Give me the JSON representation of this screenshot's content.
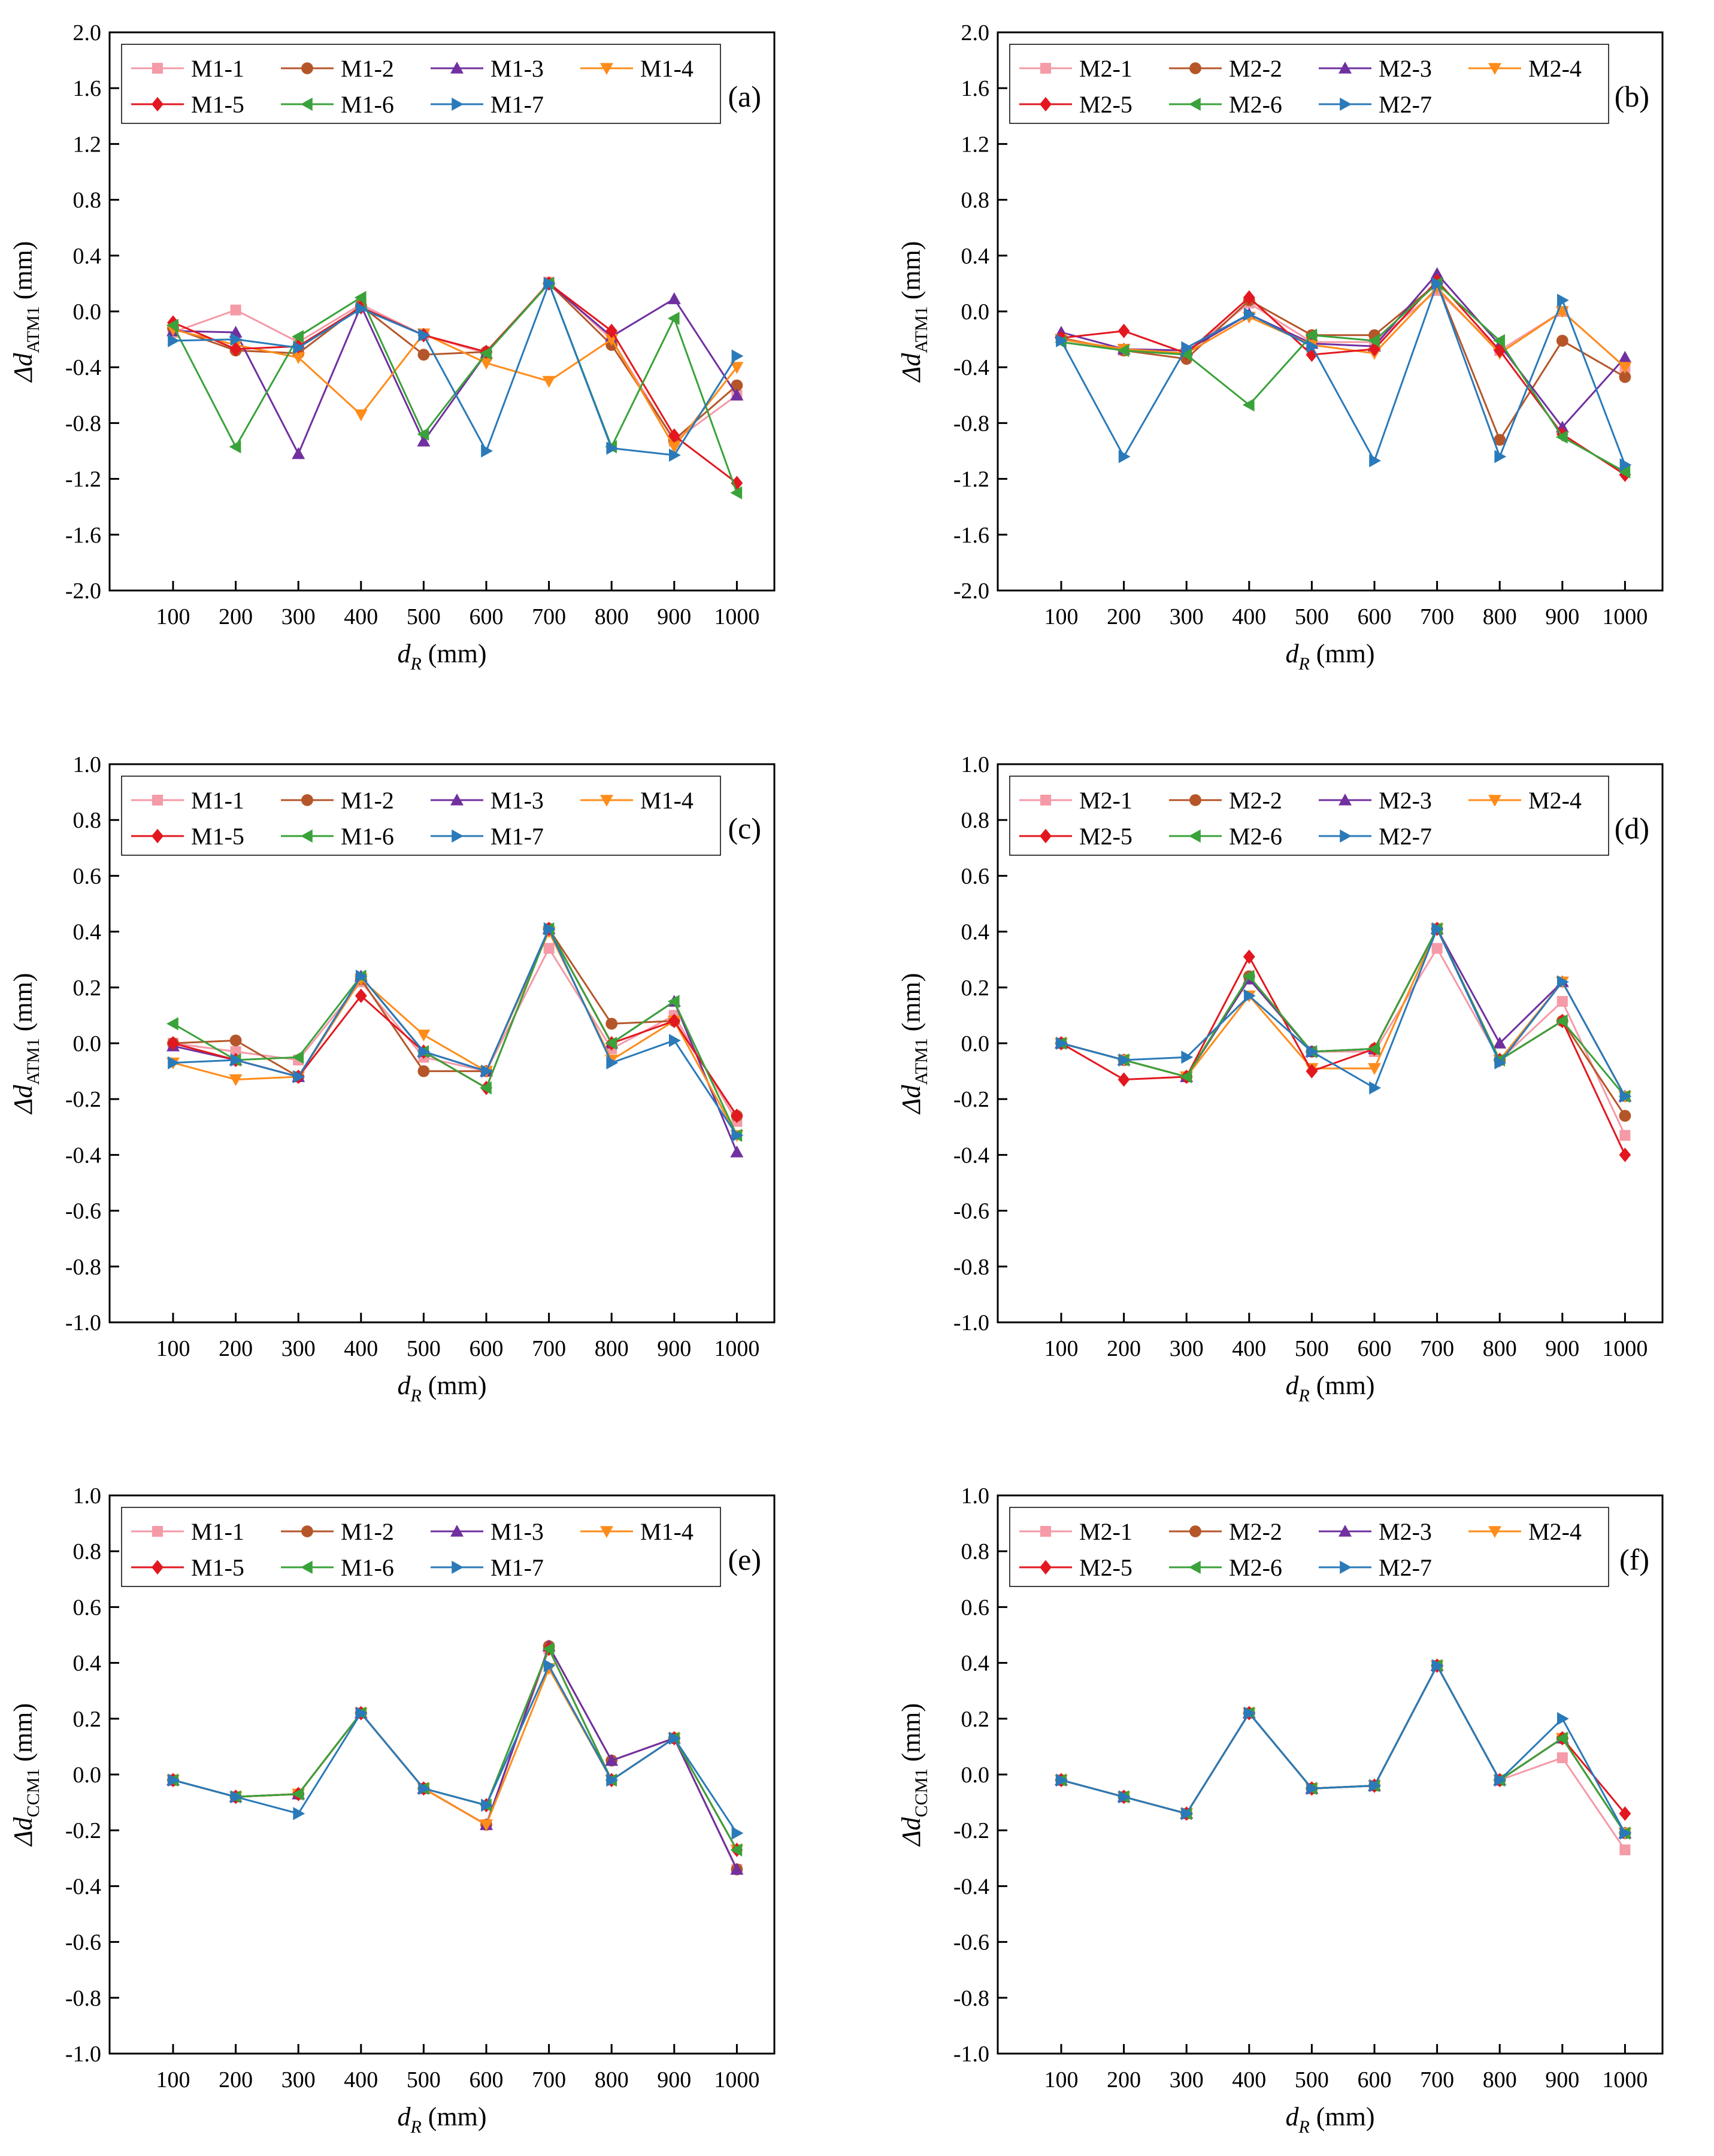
{
  "colors": {
    "M-1": "#f59aa7",
    "M-2": "#b5562a",
    "M-3": "#7030a0",
    "M-4": "#ff8c1a",
    "M-5": "#e3171f",
    "M-6": "#3aa23a",
    "M-7": "#2a7ab9"
  },
  "markers": {
    "M-1": "square",
    "M-2": "circle",
    "M-3": "triangle-up",
    "M-4": "triangle-down",
    "M-5": "diamond",
    "M-6": "triangle-left",
    "M-7": "triangle-right"
  },
  "chart_data": [
    {
      "type": "line",
      "panel": "(a)",
      "xlabel": "d",
      "xlabel_sub": "R",
      "xlabel_unit": " (mm)",
      "ylabel": "Δd",
      "ylabel_sub": "ATM1",
      "ylabel_unit": " (mm)",
      "ylim": [
        -2.0,
        2.0
      ],
      "yticks": [
        "-2.0",
        "-1.6",
        "-1.2",
        "-0.8",
        "-0.4",
        "0.0",
        "0.4",
        "0.8",
        "1.2",
        "1.6",
        "2.0"
      ],
      "categories": [
        "100",
        "200",
        "300",
        "400",
        "500",
        "600",
        "700",
        "800",
        "900",
        "1000"
      ],
      "series": [
        {
          "name": "M1-1",
          "key": "M-1",
          "values": [
            -0.15,
            0.01,
            -0.22,
            0.05,
            -0.17,
            -0.3,
            0.21,
            -0.2,
            -0.93,
            -0.6
          ]
        },
        {
          "name": "M1-2",
          "key": "M-2",
          "values": [
            -0.12,
            -0.28,
            -0.3,
            0.04,
            -0.31,
            -0.29,
            0.2,
            -0.24,
            -0.92,
            -0.53
          ]
        },
        {
          "name": "M1-3",
          "key": "M-3",
          "values": [
            -0.14,
            -0.15,
            -1.02,
            0.04,
            -0.93,
            -0.3,
            0.2,
            -0.18,
            0.09,
            -0.6
          ]
        },
        {
          "name": "M1-4",
          "key": "M-4",
          "values": [
            -0.13,
            -0.24,
            -0.33,
            -0.74,
            -0.16,
            -0.37,
            -0.5,
            -0.2,
            -0.97,
            -0.4
          ]
        },
        {
          "name": "M1-5",
          "key": "M-5",
          "values": [
            -0.08,
            -0.27,
            -0.25,
            0.03,
            -0.17,
            -0.29,
            0.2,
            -0.14,
            -0.89,
            -1.23
          ]
        },
        {
          "name": "M1-6",
          "key": "M-6",
          "values": [
            -0.1,
            -0.97,
            -0.18,
            0.1,
            -0.88,
            -0.3,
            0.2,
            -0.97,
            -0.05,
            -1.3
          ]
        },
        {
          "name": "M1-7",
          "key": "M-7",
          "values": [
            -0.21,
            -0.2,
            -0.26,
            0.02,
            -0.17,
            -1.0,
            0.2,
            -0.98,
            -1.03,
            -0.32
          ]
        }
      ]
    },
    {
      "type": "line",
      "panel": "(b)",
      "xlabel": "d",
      "xlabel_sub": "R",
      "xlabel_unit": " (mm)",
      "ylabel": "Δd",
      "ylabel_sub": "ATM1",
      "ylabel_unit": " (mm)",
      "ylim": [
        -2.0,
        2.0
      ],
      "yticks": [
        "-2.0",
        "-1.6",
        "-1.2",
        "-0.8",
        "-0.4",
        "0.0",
        "0.4",
        "0.8",
        "1.2",
        "1.6",
        "2.0"
      ],
      "categories": [
        "100",
        "200",
        "300",
        "400",
        "500",
        "600",
        "700",
        "800",
        "900",
        "1000"
      ],
      "series": [
        {
          "name": "M2-1",
          "key": "M-1",
          "values": [
            -0.2,
            -0.28,
            -0.3,
            0.06,
            -0.22,
            -0.22,
            0.15,
            -0.28,
            0.0,
            -0.4
          ]
        },
        {
          "name": "M2-2",
          "key": "M-2",
          "values": [
            -0.19,
            -0.28,
            -0.34,
            0.08,
            -0.17,
            -0.17,
            0.2,
            -0.92,
            -0.21,
            -0.47
          ]
        },
        {
          "name": "M2-3",
          "key": "M-3",
          "values": [
            -0.15,
            -0.27,
            -0.28,
            -0.02,
            -0.23,
            -0.25,
            0.27,
            -0.24,
            -0.83,
            -0.33
          ]
        },
        {
          "name": "M2-4",
          "key": "M-4",
          "values": [
            -0.2,
            -0.27,
            -0.3,
            -0.04,
            -0.24,
            -0.3,
            0.17,
            -0.3,
            0.0,
            -0.4
          ]
        },
        {
          "name": "M2-5",
          "key": "M-5",
          "values": [
            -0.19,
            -0.14,
            -0.3,
            0.1,
            -0.31,
            -0.27,
            0.22,
            -0.28,
            -0.88,
            -1.17
          ]
        },
        {
          "name": "M2-6",
          "key": "M-6",
          "values": [
            -0.22,
            -0.28,
            -0.31,
            -0.67,
            -0.17,
            -0.21,
            0.2,
            -0.21,
            -0.9,
            -1.15
          ]
        },
        {
          "name": "M2-7",
          "key": "M-7",
          "values": [
            -0.21,
            -1.04,
            -0.26,
            -0.02,
            -0.25,
            -1.07,
            0.2,
            -1.04,
            0.08,
            -1.1
          ]
        }
      ]
    },
    {
      "type": "line",
      "panel": "(c)",
      "xlabel": "d",
      "xlabel_sub": "R",
      "xlabel_unit": " (mm)",
      "ylabel": "Δd",
      "ylabel_sub": "ATM1",
      "ylabel_unit": " (mm)",
      "ylim": [
        -1.0,
        1.0
      ],
      "yticks": [
        "-1.0",
        "-0.8",
        "-0.6",
        "-0.4",
        "-0.2",
        "0.0",
        "0.2",
        "0.4",
        "0.6",
        "0.8",
        "1.0"
      ],
      "categories": [
        "100",
        "200",
        "300",
        "400",
        "500",
        "600",
        "700",
        "800",
        "900",
        "1000"
      ],
      "series": [
        {
          "name": "M1-1",
          "key": "M-1",
          "values": [
            0.0,
            -0.03,
            -0.06,
            0.22,
            -0.05,
            -0.1,
            0.34,
            -0.02,
            0.1,
            -0.28
          ]
        },
        {
          "name": "M1-2",
          "key": "M-2",
          "values": [
            0.0,
            0.01,
            -0.12,
            0.23,
            -0.1,
            -0.1,
            0.41,
            0.07,
            0.08,
            -0.26
          ]
        },
        {
          "name": "M1-3",
          "key": "M-3",
          "values": [
            -0.01,
            -0.06,
            -0.12,
            0.24,
            -0.03,
            -0.1,
            0.41,
            0.0,
            0.15,
            -0.39
          ]
        },
        {
          "name": "M1-4",
          "key": "M-4",
          "values": [
            -0.07,
            -0.13,
            -0.12,
            0.23,
            0.03,
            -0.1,
            0.4,
            -0.06,
            0.08,
            -0.33
          ]
        },
        {
          "name": "M1-5",
          "key": "M-5",
          "values": [
            0.0,
            -0.06,
            -0.12,
            0.17,
            -0.03,
            -0.16,
            0.41,
            0.0,
            0.08,
            -0.26
          ]
        },
        {
          "name": "M1-6",
          "key": "M-6",
          "values": [
            0.07,
            -0.06,
            -0.05,
            0.24,
            -0.03,
            -0.16,
            0.41,
            0.0,
            0.15,
            -0.33
          ]
        },
        {
          "name": "M1-7",
          "key": "M-7",
          "values": [
            -0.07,
            -0.06,
            -0.12,
            0.24,
            -0.03,
            -0.1,
            0.41,
            -0.07,
            0.01,
            -0.33
          ]
        }
      ]
    },
    {
      "type": "line",
      "panel": "(d)",
      "xlabel": "d",
      "xlabel_sub": "R",
      "xlabel_unit": " (mm)",
      "ylabel": "Δd",
      "ylabel_sub": "ATM1",
      "ylabel_unit": " (mm)",
      "ylim": [
        -1.0,
        1.0
      ],
      "yticks": [
        "-1.0",
        "-0.8",
        "-0.6",
        "-0.4",
        "-0.2",
        "0.0",
        "0.2",
        "0.4",
        "0.6",
        "0.8",
        "1.0"
      ],
      "categories": [
        "100",
        "200",
        "300",
        "400",
        "500",
        "600",
        "700",
        "800",
        "900",
        "1000"
      ],
      "series": [
        {
          "name": "M2-1",
          "key": "M-1",
          "values": [
            0.0,
            -0.06,
            -0.12,
            0.23,
            -0.03,
            -0.03,
            0.34,
            -0.06,
            0.15,
            -0.33
          ]
        },
        {
          "name": "M2-2",
          "key": "M-2",
          "values": [
            0.0,
            -0.06,
            -0.12,
            0.24,
            -0.03,
            -0.02,
            0.41,
            -0.06,
            0.08,
            -0.26
          ]
        },
        {
          "name": "M2-3",
          "key": "M-3",
          "values": [
            0.0,
            -0.06,
            -0.12,
            0.23,
            -0.03,
            -0.02,
            0.41,
            0.0,
            0.22,
            -0.19
          ]
        },
        {
          "name": "M2-4",
          "key": "M-4",
          "values": [
            0.0,
            -0.06,
            -0.12,
            0.17,
            -0.09,
            -0.09,
            0.41,
            -0.06,
            0.22,
            -0.19
          ]
        },
        {
          "name": "M2-5",
          "key": "M-5",
          "values": [
            0.0,
            -0.13,
            -0.12,
            0.31,
            -0.1,
            -0.02,
            0.41,
            -0.06,
            0.08,
            -0.4
          ]
        },
        {
          "name": "M2-6",
          "key": "M-6",
          "values": [
            0.0,
            -0.06,
            -0.12,
            0.24,
            -0.03,
            -0.02,
            0.41,
            -0.06,
            0.08,
            -0.19
          ]
        },
        {
          "name": "M2-7",
          "key": "M-7",
          "values": [
            0.0,
            -0.06,
            -0.05,
            0.17,
            -0.03,
            -0.16,
            0.41,
            -0.07,
            0.22,
            -0.19
          ]
        }
      ]
    },
    {
      "type": "line",
      "panel": "(e)",
      "xlabel": "d",
      "xlabel_sub": "R",
      "xlabel_unit": " (mm)",
      "ylabel": "Δd",
      "ylabel_sub": "CCM1",
      "ylabel_unit": " (mm)",
      "ylim": [
        -1.0,
        1.0
      ],
      "yticks": [
        "-1.0",
        "-0.8",
        "-0.6",
        "-0.4",
        "-0.2",
        "0.0",
        "0.2",
        "0.4",
        "0.6",
        "0.8",
        "1.0"
      ],
      "categories": [
        "100",
        "200",
        "300",
        "400",
        "500",
        "600",
        "700",
        "800",
        "900",
        "1000"
      ],
      "series": [
        {
          "name": "M1-1",
          "key": "M-1",
          "values": [
            -0.02,
            -0.08,
            -0.07,
            0.22,
            -0.05,
            -0.18,
            0.45,
            -0.02,
            0.13,
            -0.34
          ]
        },
        {
          "name": "M1-2",
          "key": "M-2",
          "values": [
            -0.02,
            -0.08,
            -0.07,
            0.22,
            -0.05,
            -0.18,
            0.46,
            0.05,
            0.13,
            -0.34
          ]
        },
        {
          "name": "M1-3",
          "key": "M-3",
          "values": [
            -0.02,
            -0.08,
            -0.07,
            0.22,
            -0.05,
            -0.18,
            0.46,
            0.05,
            0.13,
            -0.34
          ]
        },
        {
          "name": "M1-4",
          "key": "M-4",
          "values": [
            -0.02,
            -0.08,
            -0.07,
            0.22,
            -0.05,
            -0.18,
            0.38,
            -0.02,
            0.13,
            -0.27
          ]
        },
        {
          "name": "M1-5",
          "key": "M-5",
          "values": [
            -0.02,
            -0.08,
            -0.07,
            0.22,
            -0.05,
            -0.11,
            0.45,
            -0.02,
            0.13,
            -0.27
          ]
        },
        {
          "name": "M1-6",
          "key": "M-6",
          "values": [
            -0.02,
            -0.08,
            -0.07,
            0.22,
            -0.05,
            -0.11,
            0.45,
            -0.02,
            0.13,
            -0.27
          ]
        },
        {
          "name": "M1-7",
          "key": "M-7",
          "values": [
            -0.02,
            -0.08,
            -0.14,
            0.22,
            -0.05,
            -0.11,
            0.39,
            -0.02,
            0.13,
            -0.21
          ]
        }
      ]
    },
    {
      "type": "line",
      "panel": "(f)",
      "xlabel": "d",
      "xlabel_sub": "R",
      "xlabel_unit": " (mm)",
      "ylabel": "Δd",
      "ylabel_sub": "CCM1",
      "ylabel_unit": " (mm)",
      "ylim": [
        -1.0,
        1.0
      ],
      "yticks": [
        "-1.0",
        "-0.8",
        "-0.6",
        "-0.4",
        "-0.2",
        "0.0",
        "0.2",
        "0.4",
        "0.6",
        "0.8",
        "1.0"
      ],
      "categories": [
        "100",
        "200",
        "300",
        "400",
        "500",
        "600",
        "700",
        "800",
        "900",
        "1000"
      ],
      "series": [
        {
          "name": "M2-1",
          "key": "M-1",
          "values": [
            -0.02,
            -0.08,
            -0.14,
            0.22,
            -0.05,
            -0.04,
            0.39,
            -0.02,
            0.06,
            -0.27
          ]
        },
        {
          "name": "M2-2",
          "key": "M-2",
          "values": [
            -0.02,
            -0.08,
            -0.14,
            0.22,
            -0.05,
            -0.04,
            0.39,
            -0.02,
            0.13,
            -0.21
          ]
        },
        {
          "name": "M2-3",
          "key": "M-3",
          "values": [
            -0.02,
            -0.08,
            -0.14,
            0.22,
            -0.05,
            -0.04,
            0.39,
            -0.02,
            0.13,
            -0.21
          ]
        },
        {
          "name": "M2-4",
          "key": "M-4",
          "values": [
            -0.02,
            -0.08,
            -0.14,
            0.22,
            -0.05,
            -0.04,
            0.39,
            -0.02,
            0.13,
            -0.21
          ]
        },
        {
          "name": "M2-5",
          "key": "M-5",
          "values": [
            -0.02,
            -0.08,
            -0.14,
            0.22,
            -0.05,
            -0.04,
            0.39,
            -0.02,
            0.13,
            -0.14
          ]
        },
        {
          "name": "M2-6",
          "key": "M-6",
          "values": [
            -0.02,
            -0.08,
            -0.14,
            0.22,
            -0.05,
            -0.04,
            0.39,
            -0.02,
            0.13,
            -0.21
          ]
        },
        {
          "name": "M2-7",
          "key": "M-7",
          "values": [
            -0.02,
            -0.08,
            -0.14,
            0.22,
            -0.05,
            -0.04,
            0.39,
            -0.02,
            0.2,
            -0.21
          ]
        }
      ]
    }
  ]
}
